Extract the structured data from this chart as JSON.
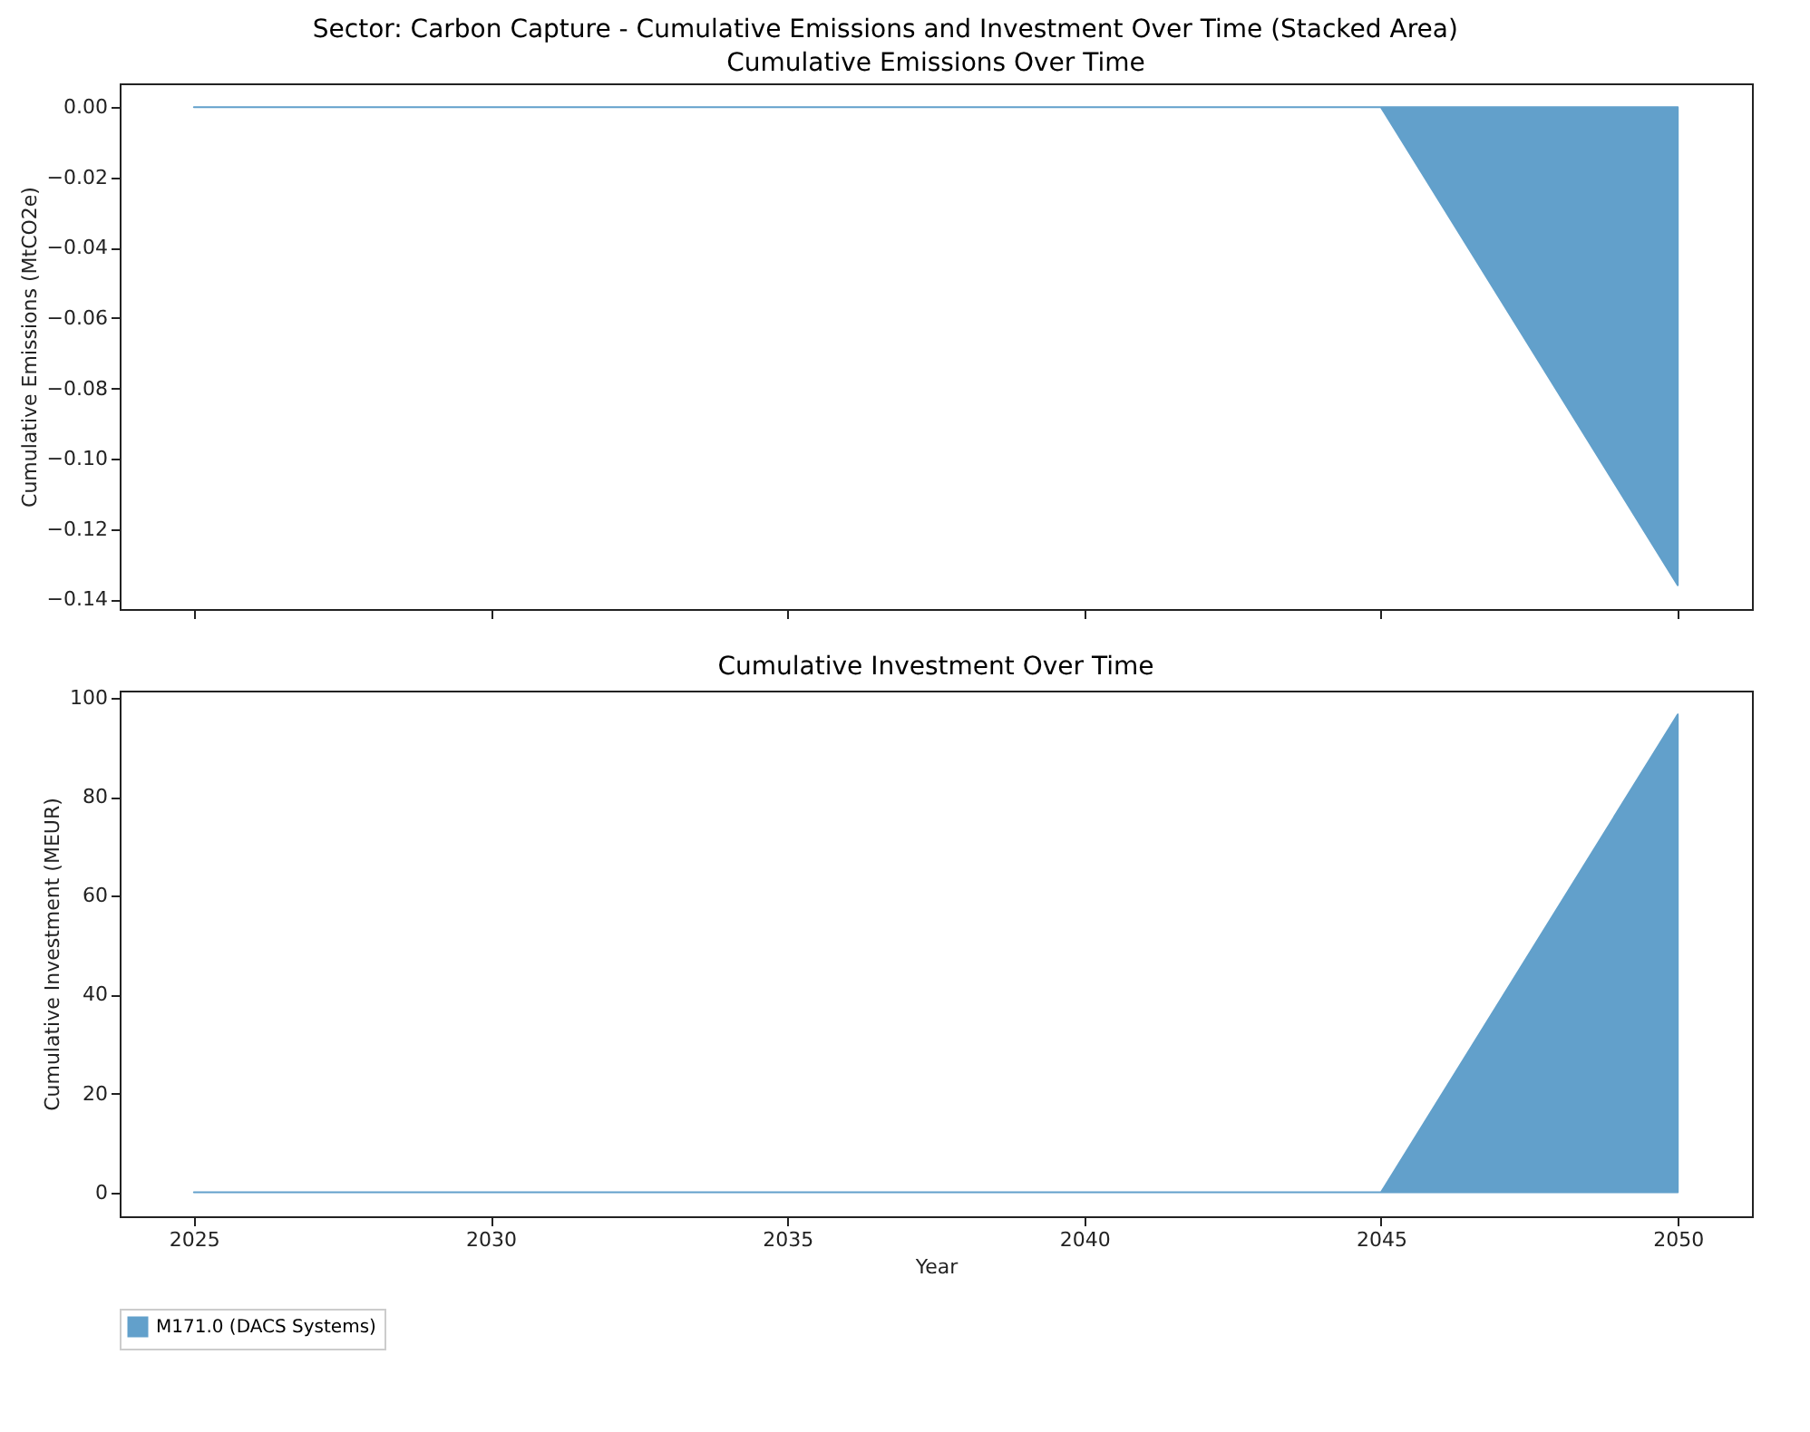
{
  "chart_data": [
    {
      "type": "area",
      "title": "Sector: Carbon Capture - Cumulative Emissions and Investment Over Time (Stacked Area)",
      "subtitle": "Cumulative Emissions Over Time",
      "ylabel": "Cumulative Emissions (MtCO2e)",
      "x": [
        2025,
        2030,
        2035,
        2040,
        2045,
        2050
      ],
      "series": [
        {
          "color": "#62a0cb",
          "values": [
            0,
            0,
            0,
            0,
            0,
            -0.136
          ]
        }
      ],
      "xlim": [
        2023.75,
        2051.25
      ],
      "xticks": [
        {
          "value": 2025,
          "label": null
        },
        {
          "value": 2030,
          "label": null
        },
        {
          "value": 2035,
          "label": null
        },
        {
          "value": 2040,
          "label": null
        },
        {
          "value": 2045,
          "label": null
        },
        {
          "value": 2050,
          "label": null
        }
      ],
      "ylim": [
        -0.1428,
        0.0068
      ],
      "yticks": [
        {
          "value": 0,
          "label": "0.00"
        },
        -0.02,
        -0.04,
        -0.06,
        -0.08,
        {
          "value": -0.1,
          "label": "−0.10"
        },
        -0.12,
        -0.14
      ],
      "tick_labels": "y",
      "grid": false,
      "legend": false
    },
    {
      "type": "area",
      "title": "Cumulative Investment Over Time",
      "xlabel": "Year",
      "ylabel": "Cumulative Investment (MEUR)",
      "x": [
        2025,
        2030,
        2035,
        2040,
        2045,
        2050
      ],
      "series": [
        {
          "name": "M171.0 (DACS Systems)",
          "color": "#62a0cb",
          "values": [
            0,
            0,
            0,
            0,
            0,
            96.7
          ]
        }
      ],
      "xlim": [
        2023.75,
        2051.25
      ],
      "xticks": [
        2025,
        2030,
        2035,
        2040,
        2045,
        2050
      ],
      "ylim": [
        -4.84,
        101.5
      ],
      "yticks": [
        0,
        20,
        40,
        60,
        80,
        100
      ],
      "grid": false,
      "legend": "bottom"
    }
  ]
}
